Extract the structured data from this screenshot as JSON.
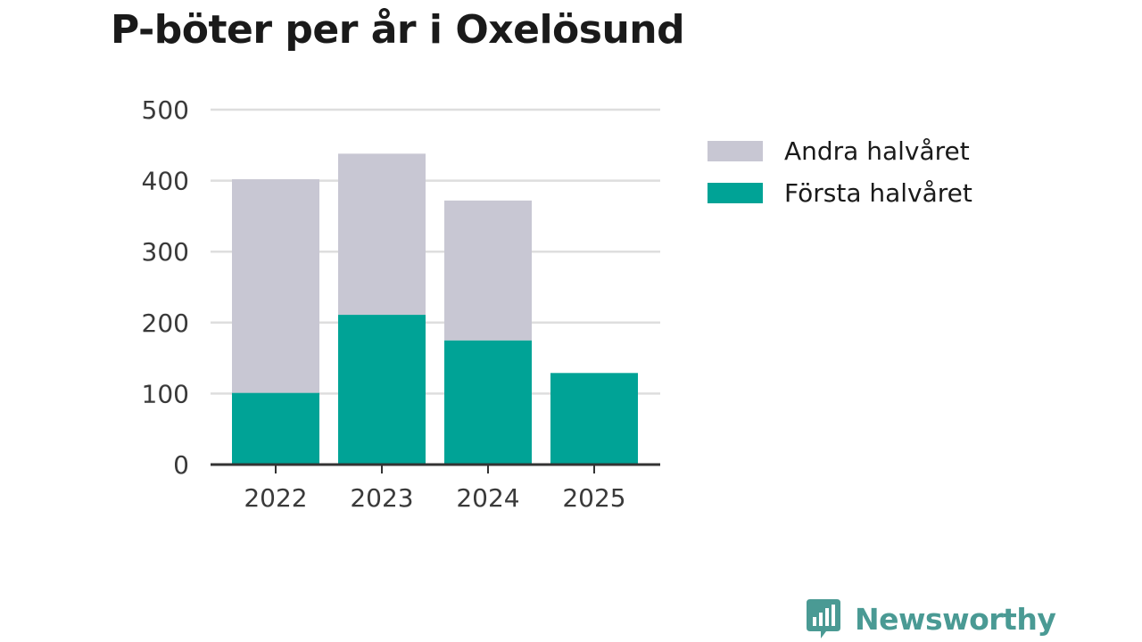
{
  "title": "P-böter per år i Oxelösund",
  "colors": {
    "andra": "#c8c7d3",
    "forsta": "#00a396",
    "grid": "#dedede",
    "axis": "#333333",
    "brand": "#4a9a94"
  },
  "legend": [
    {
      "label": "Andra halvåret",
      "color": "#c8c7d3"
    },
    {
      "label": "Första halvåret",
      "color": "#00a396"
    }
  ],
  "chart_data": {
    "type": "bar",
    "stacked": true,
    "categories": [
      "2022",
      "2023",
      "2024",
      "2025"
    ],
    "series": [
      {
        "name": "Första halvåret",
        "values": [
          101,
          211,
          175,
          129
        ]
      },
      {
        "name": "Andra halvåret",
        "values": [
          301,
          227,
          197,
          0
        ]
      }
    ],
    "ylim": [
      0,
      500
    ],
    "yticks": [
      0,
      100,
      200,
      300,
      400,
      500
    ],
    "grid": true,
    "legend_position": "right"
  },
  "brand": {
    "name": "Newsworthy",
    "icon": "bar-chart-speech-bubble-icon"
  }
}
